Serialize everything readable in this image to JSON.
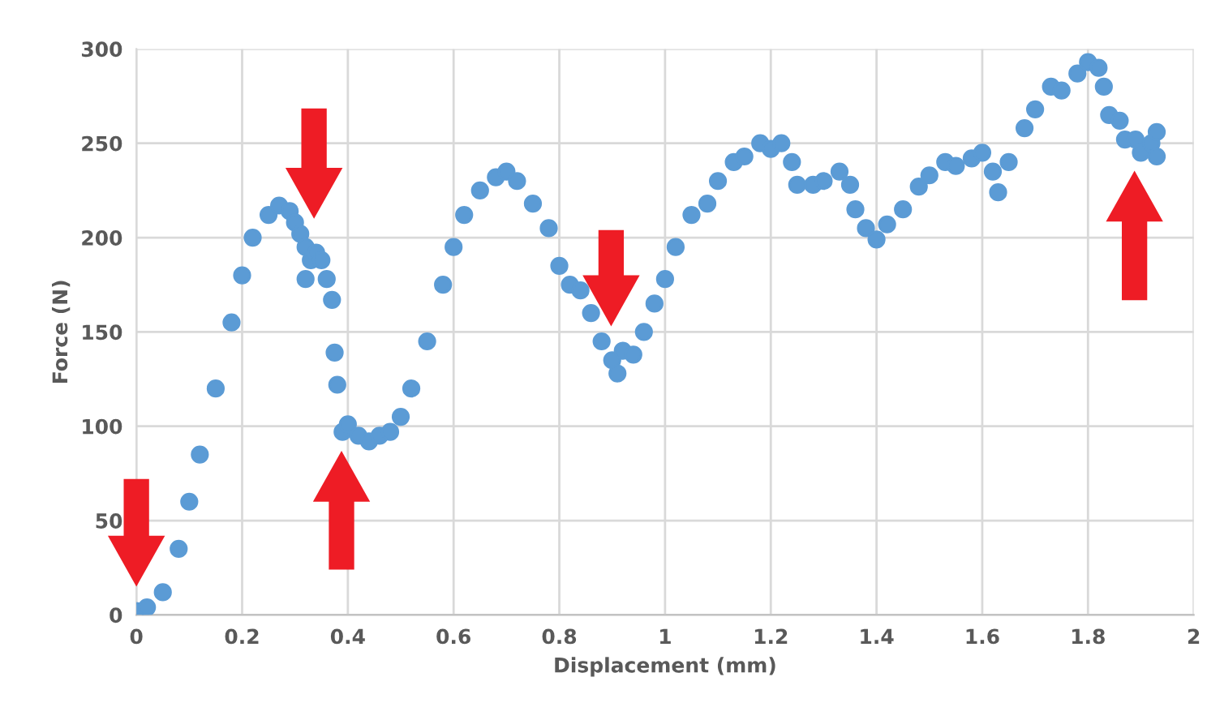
{
  "chart_data": {
    "type": "scatter",
    "xlabel": "Displacement (mm)",
    "ylabel": "Force (N)",
    "xlim": [
      0,
      2
    ],
    "xticks": [
      0,
      0.2,
      0.4,
      0.6,
      0.8,
      1,
      1.2,
      1.4,
      1.6,
      1.8,
      2
    ],
    "ylim": [
      0,
      300
    ],
    "yticks": [
      0,
      50,
      100,
      150,
      200,
      250,
      300
    ],
    "grid": true,
    "marker": "circle",
    "series": [
      {
        "color": "#5b9bd5",
        "x": [
          0,
          0.02,
          0.05,
          0.08,
          0.1,
          0.12,
          0.15,
          0.18,
          0.2,
          0.22,
          0.25,
          0.27,
          0.29,
          0.3,
          0.31,
          0.32,
          0.32,
          0.33,
          0.34,
          0.35,
          0.36,
          0.37,
          0.375,
          0.38,
          0.39,
          0.4,
          0.42,
          0.44,
          0.46,
          0.48,
          0.5,
          0.52,
          0.55,
          0.58,
          0.6,
          0.62,
          0.65,
          0.68,
          0.7,
          0.72,
          0.75,
          0.78,
          0.8,
          0.82,
          0.84,
          0.86,
          0.88,
          0.9,
          0.91,
          0.92,
          0.94,
          0.96,
          0.98,
          1.0,
          1.02,
          1.05,
          1.08,
          1.1,
          1.13,
          1.15,
          1.18,
          1.2,
          1.22,
          1.24,
          1.25,
          1.28,
          1.3,
          1.33,
          1.35,
          1.36,
          1.38,
          1.4,
          1.42,
          1.45,
          1.48,
          1.5,
          1.53,
          1.55,
          1.58,
          1.6,
          1.62,
          1.63,
          1.65,
          1.68,
          1.7,
          1.73,
          1.75,
          1.78,
          1.8,
          1.82,
          1.83,
          1.84,
          1.86,
          1.87,
          1.89,
          1.9,
          1.92,
          1.93,
          1.93
        ],
        "values": [
          2,
          4,
          12,
          35,
          60,
          85,
          120,
          155,
          180,
          200,
          212,
          217,
          214,
          208,
          202,
          195,
          178,
          188,
          192,
          188,
          178,
          167,
          139,
          122,
          97,
          101,
          95,
          92,
          95,
          97,
          105,
          120,
          145,
          175,
          195,
          212,
          225,
          232,
          235,
          230,
          218,
          205,
          185,
          175,
          172,
          160,
          145,
          135,
          128,
          140,
          138,
          150,
          165,
          178,
          195,
          212,
          218,
          230,
          240,
          243,
          250,
          247,
          250,
          240,
          228,
          228,
          230,
          235,
          228,
          215,
          205,
          199,
          207,
          215,
          227,
          233,
          240,
          238,
          242,
          245,
          235,
          224,
          240,
          258,
          268,
          280,
          278,
          287,
          293,
          290,
          280,
          265,
          262,
          252,
          252,
          245,
          250,
          256,
          243
        ]
      }
    ]
  }
}
